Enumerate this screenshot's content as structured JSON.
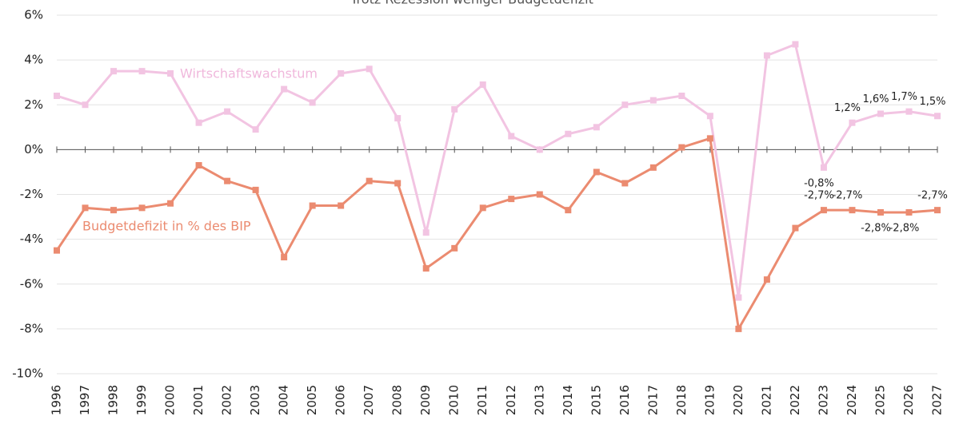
{
  "chart_data": {
    "type": "line",
    "title": "Trotz Rezession weniger Budgetdefizit",
    "categories": [
      "1996",
      "1997",
      "1998",
      "1999",
      "2000",
      "2001",
      "2002",
      "2003",
      "2004",
      "2005",
      "2006",
      "2007",
      "2008",
      "2009",
      "2010",
      "2011",
      "2012",
      "2013",
      "2014",
      "2015",
      "2016",
      "2017",
      "2018",
      "2019",
      "2020",
      "2021",
      "2022",
      "2023",
      "2024",
      "2025",
      "2026",
      "2027"
    ],
    "series": [
      {
        "name": "Wirtschaftswachstum",
        "color": "#f2c4e2",
        "values": [
          2.4,
          2.0,
          3.5,
          3.5,
          3.4,
          1.2,
          1.7,
          0.9,
          2.7,
          2.1,
          3.4,
          3.6,
          1.4,
          -3.7,
          1.8,
          2.9,
          0.6,
          0.0,
          0.7,
          1.0,
          2.0,
          2.2,
          2.4,
          1.5,
          -6.6,
          4.2,
          4.7,
          -0.8,
          1.2,
          1.6,
          1.7,
          1.5
        ],
        "value_labels": [
          null,
          null,
          null,
          null,
          null,
          null,
          null,
          null,
          null,
          null,
          null,
          null,
          null,
          null,
          null,
          null,
          null,
          null,
          null,
          null,
          null,
          null,
          null,
          null,
          null,
          null,
          null,
          "-0,8%",
          "1,2%",
          "1,6%",
          "1,7%",
          "1,5%"
        ]
      },
      {
        "name": "Budgetdefizit in % des BIP",
        "color": "#eb8b70",
        "values": [
          -4.5,
          -2.6,
          -2.7,
          -2.6,
          -2.4,
          -0.7,
          -1.4,
          -1.8,
          -4.8,
          -2.5,
          -2.5,
          -1.4,
          -1.5,
          -5.3,
          -4.4,
          -2.6,
          -2.2,
          -2.0,
          -2.7,
          -1.0,
          -1.5,
          -0.8,
          0.1,
          0.5,
          -8.0,
          -5.8,
          -3.5,
          -2.7,
          -2.7,
          -2.8,
          -2.8,
          -2.7
        ],
        "value_labels": [
          null,
          null,
          null,
          null,
          null,
          null,
          null,
          null,
          null,
          null,
          null,
          null,
          null,
          null,
          null,
          null,
          null,
          null,
          null,
          null,
          null,
          null,
          null,
          null,
          null,
          null,
          null,
          "-2,7%",
          "-2,7%",
          "-2,8%",
          "-2,8%",
          "-2,7%"
        ]
      }
    ],
    "ylim": [
      -10,
      6
    ],
    "yticks": [
      {
        "value": -10,
        "label": "-10%"
      },
      {
        "value": -8,
        "label": "-8%"
      },
      {
        "value": -6,
        "label": "-6%"
      },
      {
        "value": -4,
        "label": "-4%"
      },
      {
        "value": -2,
        "label": "-2%"
      },
      {
        "value": 0,
        "label": "0%"
      },
      {
        "value": 2,
        "label": "2%"
      },
      {
        "value": 4,
        "label": "4%"
      },
      {
        "value": 6,
        "label": "6%"
      }
    ],
    "grid": true
  }
}
